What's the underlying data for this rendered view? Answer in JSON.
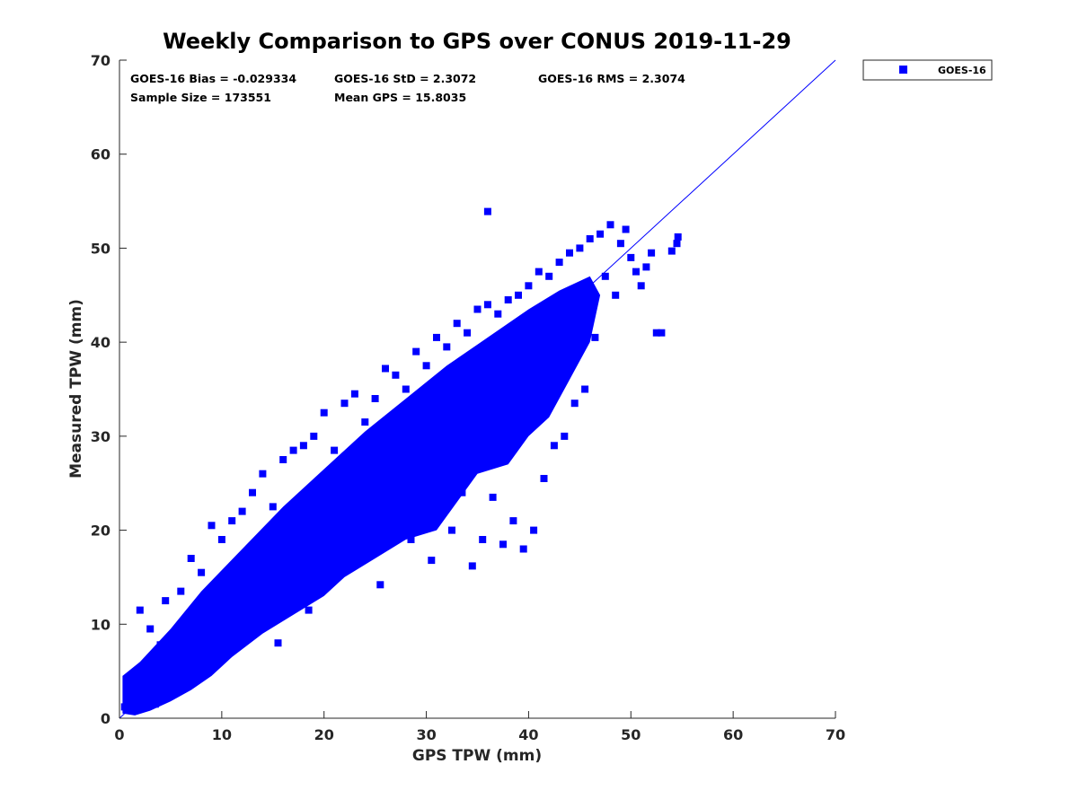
{
  "chart_data": {
    "type": "scatter",
    "title": "Weekly Comparison to GPS over CONUS 2019-11-29",
    "xlabel": "GPS TPW (mm)",
    "ylabel": "Measured TPW (mm)",
    "xlim": [
      0,
      70
    ],
    "ylim": [
      0,
      70
    ],
    "xticks": [
      "0",
      "10",
      "20",
      "30",
      "40",
      "50",
      "60",
      "70"
    ],
    "yticks": [
      "0",
      "10",
      "20",
      "30",
      "40",
      "50",
      "60",
      "70"
    ],
    "grid": false,
    "legend_position": "outside-top-right",
    "marker_color": "#0000ff",
    "reference_line": {
      "type": "one-to-one",
      "from": [
        0,
        0
      ],
      "to": [
        70,
        70
      ],
      "color": "#0000ff"
    },
    "stats": {
      "bias": "GOES-16 Bias = -0.029334",
      "std": "GOES-16 StD = 2.3072",
      "rms": "GOES-16 RMS = 2.3074",
      "sample_size": "Sample Size = 173551",
      "mean_gps": "Mean GPS = 15.8035"
    },
    "series": [
      {
        "name": "GOES-16",
        "color": "#0000ff",
        "points": [
          [
            0.5,
            1.2
          ],
          [
            1.0,
            3.5
          ],
          [
            1.2,
            0.8
          ],
          [
            1.5,
            4.8
          ],
          [
            2.0,
            11.5
          ],
          [
            2.2,
            2.0
          ],
          [
            2.8,
            5.5
          ],
          [
            3.0,
            9.5
          ],
          [
            3.5,
            1.5
          ],
          [
            4.0,
            7.8
          ],
          [
            4.5,
            12.5
          ],
          [
            5.0,
            3.0
          ],
          [
            5.5,
            8.5
          ],
          [
            6.0,
            13.5
          ],
          [
            6.5,
            4.5
          ],
          [
            7.0,
            17.0
          ],
          [
            7.5,
            9.0
          ],
          [
            8.0,
            15.5
          ],
          [
            8.5,
            5.5
          ],
          [
            9.0,
            20.5
          ],
          [
            9.5,
            12.0
          ],
          [
            10.0,
            19.0
          ],
          [
            10.5,
            8.0
          ],
          [
            11.0,
            21.0
          ],
          [
            11.5,
            13.5
          ],
          [
            12.0,
            22.0
          ],
          [
            12.5,
            9.5
          ],
          [
            13.0,
            24.0
          ],
          [
            13.5,
            14.0
          ],
          [
            14.0,
            26.0
          ],
          [
            14.5,
            10.5
          ],
          [
            15.0,
            22.5
          ],
          [
            15.5,
            8.0
          ],
          [
            16.0,
            27.5
          ],
          [
            16.5,
            15.0
          ],
          [
            17.0,
            28.5
          ],
          [
            17.5,
            14.5
          ],
          [
            18.0,
            29.0
          ],
          [
            18.5,
            11.5
          ],
          [
            19.0,
            30.0
          ],
          [
            19.5,
            18.0
          ],
          [
            20.0,
            32.5
          ],
          [
            20.5,
            15.0
          ],
          [
            21.0,
            28.5
          ],
          [
            21.5,
            16.5
          ],
          [
            22.0,
            33.5
          ],
          [
            22.5,
            19.5
          ],
          [
            23.0,
            34.5
          ],
          [
            23.5,
            17.5
          ],
          [
            24.0,
            31.5
          ],
          [
            24.5,
            22.0
          ],
          [
            25.0,
            34.0
          ],
          [
            25.5,
            14.2
          ],
          [
            26.0,
            37.2
          ],
          [
            26.5,
            20.0
          ],
          [
            27.0,
            36.5
          ],
          [
            27.5,
            22.5
          ],
          [
            28.0,
            35.0
          ],
          [
            28.5,
            19.0
          ],
          [
            29.0,
            39.0
          ],
          [
            29.5,
            24.5
          ],
          [
            30.0,
            37.5
          ],
          [
            30.5,
            16.8
          ],
          [
            31.0,
            40.5
          ],
          [
            31.5,
            26.0
          ],
          [
            32.0,
            39.5
          ],
          [
            32.5,
            20.0
          ],
          [
            33.0,
            42.0
          ],
          [
            33.5,
            24.0
          ],
          [
            34.0,
            41.0
          ],
          [
            34.5,
            16.2
          ],
          [
            35.0,
            43.5
          ],
          [
            35.5,
            19.0
          ],
          [
            36.0,
            44.0
          ],
          [
            36.5,
            23.5
          ],
          [
            37.0,
            43.0
          ],
          [
            37.5,
            18.5
          ],
          [
            38.0,
            44.5
          ],
          [
            38.5,
            21.0
          ],
          [
            39.0,
            45.0
          ],
          [
            39.5,
            18.0
          ],
          [
            40.0,
            46.0
          ],
          [
            40.5,
            20.0
          ],
          [
            41.0,
            47.5
          ],
          [
            41.5,
            25.5
          ],
          [
            42.0,
            47.0
          ],
          [
            42.5,
            29.0
          ],
          [
            43.0,
            48.5
          ],
          [
            43.5,
            30.0
          ],
          [
            44.0,
            49.5
          ],
          [
            44.5,
            33.5
          ],
          [
            45.0,
            50.0
          ],
          [
            45.5,
            35.0
          ],
          [
            46.0,
            51.0
          ],
          [
            46.5,
            40.5
          ],
          [
            47.0,
            51.5
          ],
          [
            47.5,
            47.0
          ],
          [
            48.0,
            52.5
          ],
          [
            48.5,
            45.0
          ],
          [
            49.0,
            50.5
          ],
          [
            49.5,
            52.0
          ],
          [
            50.0,
            49.0
          ],
          [
            50.5,
            47.5
          ],
          [
            51.0,
            46.0
          ],
          [
            51.5,
            48.0
          ],
          [
            52.0,
            49.5
          ],
          [
            52.5,
            41.0
          ],
          [
            53.0,
            41.0
          ],
          [
            54.0,
            49.7
          ],
          [
            54.5,
            50.5
          ],
          [
            54.6,
            51.2
          ],
          [
            36.0,
            53.9
          ]
        ]
      }
    ]
  }
}
